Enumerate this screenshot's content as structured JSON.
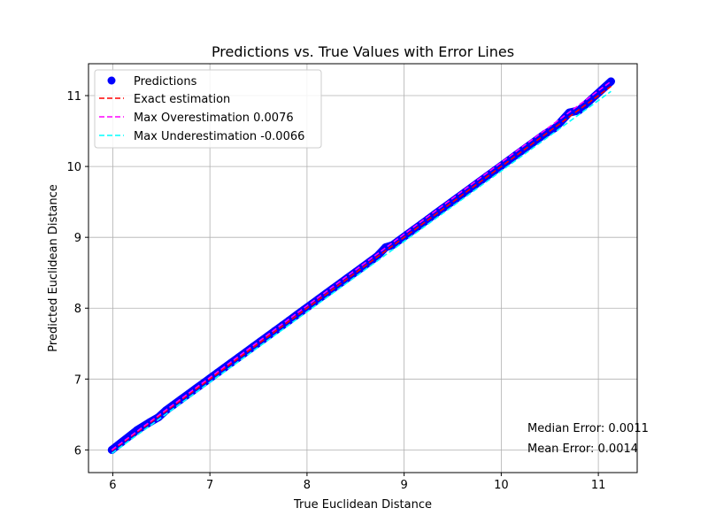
{
  "chart_data": {
    "type": "scatter",
    "title": "Predictions vs. True Values with Error Lines",
    "xlabel": "True Euclidean Distance",
    "ylabel": "Predicted Euclidean Distance",
    "xlim": [
      5.75,
      11.4
    ],
    "ylim": [
      5.68,
      11.45
    ],
    "xticks": [
      6,
      7,
      8,
      9,
      10,
      11
    ],
    "yticks": [
      6,
      7,
      8,
      9,
      10,
      11
    ],
    "grid": true,
    "legend_position": "top-left",
    "colors": {
      "predictions": "#0000ff",
      "exact": "#ff0000",
      "over": "#ff00ff",
      "under": "#00ffff",
      "grid": "#b0b0b0"
    },
    "series": [
      {
        "name": "Predictions",
        "kind": "scatter",
        "x": [
          5.99,
          6.25,
          6.38,
          6.47,
          6.55,
          6.62,
          6.7,
          6.78,
          6.86,
          6.93,
          7.0,
          7.08,
          7.15,
          7.22,
          7.3,
          7.37,
          7.45,
          7.52,
          7.6,
          7.67,
          7.75,
          7.82,
          7.9,
          7.97,
          8.05,
          8.12,
          8.2,
          8.27,
          8.35,
          8.42,
          8.5,
          8.57,
          8.65,
          8.72,
          8.81,
          8.88,
          8.95,
          9.03,
          9.1,
          9.18,
          9.25,
          9.33,
          9.4,
          9.48,
          9.55,
          9.63,
          9.7,
          9.78,
          9.85,
          9.93,
          10.0,
          10.08,
          10.15,
          10.22,
          10.3,
          10.38,
          10.45,
          10.56,
          10.7,
          10.8,
          11.13
        ],
        "y": [
          6.0,
          6.28,
          6.39,
          6.46,
          6.56,
          6.63,
          6.71,
          6.79,
          6.87,
          6.94,
          7.01,
          7.09,
          7.16,
          7.23,
          7.31,
          7.38,
          7.46,
          7.53,
          7.61,
          7.68,
          7.76,
          7.83,
          7.91,
          7.98,
          8.06,
          8.13,
          8.21,
          8.28,
          8.36,
          8.43,
          8.51,
          8.58,
          8.66,
          8.73,
          8.86,
          8.89,
          8.96,
          9.04,
          9.11,
          9.19,
          9.26,
          9.34,
          9.41,
          9.49,
          9.56,
          9.64,
          9.71,
          9.79,
          9.86,
          9.94,
          10.01,
          10.09,
          10.16,
          10.23,
          10.31,
          10.39,
          10.46,
          10.55,
          10.76,
          10.79,
          11.2
        ]
      },
      {
        "name": "Exact estimation",
        "kind": "line",
        "x": [
          5.99,
          11.13
        ],
        "y": [
          5.99,
          11.13
        ]
      },
      {
        "name": "Max Overestimation 0.0076",
        "kind": "line",
        "x": [
          5.99,
          11.13
        ],
        "y": [
          6.0,
          11.2
        ]
      },
      {
        "name": "Max Underestimation -0.0066",
        "kind": "line",
        "x": [
          5.99,
          11.13
        ],
        "y": [
          5.95,
          11.06
        ]
      }
    ],
    "annotations": [
      "Median Error: 0.0011",
      "Mean Error: 0.0014"
    ]
  }
}
